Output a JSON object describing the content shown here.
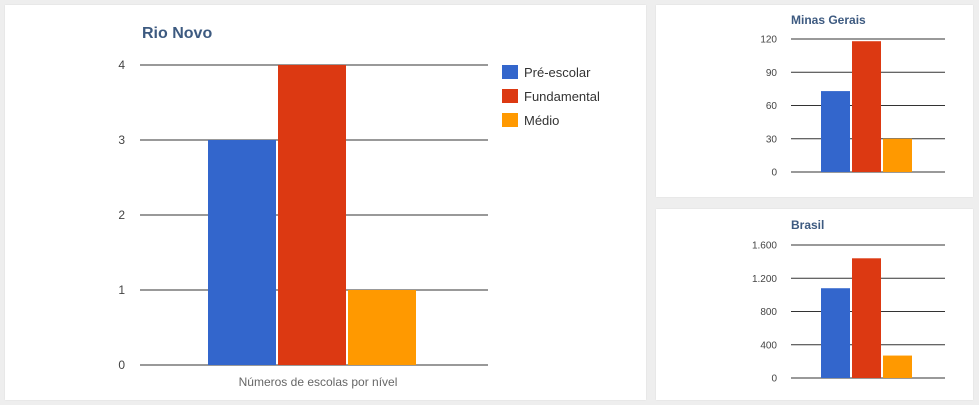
{
  "colors": {
    "pre_escolar": "#3366cc",
    "fundamental": "#dc3912",
    "medio": "#ff9900",
    "title": "#3d5a80",
    "grid": "#333333",
    "tick": "#444444",
    "xlabel": "#666666"
  },
  "legend": {
    "items": [
      "Pré-escolar",
      "Fundamental",
      "Médio"
    ]
  },
  "chart_data": [
    {
      "type": "bar",
      "title": "Rio Novo",
      "xlabel": "Números de escolas por nível",
      "ylabel": "",
      "categories": [
        "Números de escolas por nível"
      ],
      "series": [
        {
          "name": "Pré-escolar",
          "values": [
            3
          ]
        },
        {
          "name": "Fundamental",
          "values": [
            4
          ]
        },
        {
          "name": "Médio",
          "values": [
            1
          ]
        }
      ],
      "ylim": [
        0,
        4
      ],
      "yticks": [
        0,
        1,
        2,
        3,
        4
      ],
      "ytick_labels": [
        "0",
        "1",
        "2",
        "3",
        "4"
      ],
      "grid": true,
      "legend_position": "right"
    },
    {
      "type": "bar",
      "title": "Minas Gerais",
      "xlabel": "",
      "ylabel": "",
      "categories": [
        ""
      ],
      "series": [
        {
          "name": "Pré-escolar",
          "values": [
            73
          ]
        },
        {
          "name": "Fundamental",
          "values": [
            118
          ]
        },
        {
          "name": "Médio",
          "values": [
            30
          ]
        }
      ],
      "ylim": [
        0,
        120
      ],
      "yticks": [
        0,
        30,
        60,
        90,
        120
      ],
      "ytick_labels": [
        "0",
        "30",
        "60",
        "90",
        "120"
      ],
      "grid": true,
      "legend_position": "none"
    },
    {
      "type": "bar",
      "title": "Brasil",
      "xlabel": "",
      "ylabel": "",
      "categories": [
        ""
      ],
      "series": [
        {
          "name": "Pré-escolar",
          "values": [
            1080
          ]
        },
        {
          "name": "Fundamental",
          "values": [
            1440
          ]
        },
        {
          "name": "Médio",
          "values": [
            270
          ]
        }
      ],
      "ylim": [
        0,
        1600
      ],
      "yticks": [
        0,
        400,
        800,
        1200,
        1600
      ],
      "ytick_labels": [
        "0",
        "400",
        "800",
        "1.200",
        "1.600"
      ],
      "grid": true,
      "legend_position": "none"
    }
  ]
}
